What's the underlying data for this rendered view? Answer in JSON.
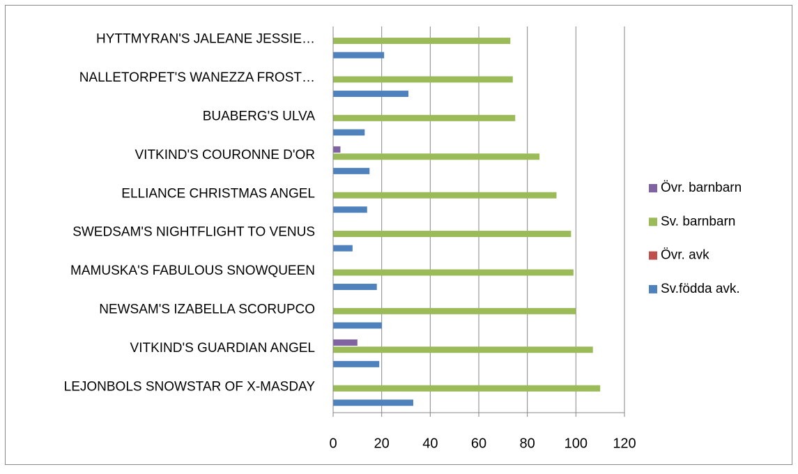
{
  "chart_data": {
    "type": "bar",
    "orientation": "horizontal",
    "categories": [
      "LEJONBOLS SNOWSTAR OF X-MASDAY",
      "VITKIND'S GUARDIAN ANGEL",
      "NEWSAM'S IZABELLA SCORUPCO",
      "MAMUSKA'S FABULOUS SNOWQUEEN",
      "SWEDSAM'S NIGHTFLIGHT TO VENUS",
      "ELLIANCE CHRISTMAS ANGEL",
      "VITKIND'S COURONNE D'OR",
      "BUABERG'S ULVA",
      "NALLETORPET'S WANEZZA FROST…",
      "HYTTMYRAN'S JALEANE JESSIE…"
    ],
    "series": [
      {
        "name": "Sv.födda avk.",
        "color": "#4f81bd",
        "values": [
          33,
          19,
          20,
          18,
          8,
          14,
          15,
          13,
          31,
          21
        ]
      },
      {
        "name": "Övr. avk",
        "color": "#c0504d",
        "values": [
          0,
          0,
          0,
          0,
          0,
          0,
          0,
          0,
          0,
          0
        ]
      },
      {
        "name": "Sv. barnbarn",
        "color": "#9bbb59",
        "values": [
          110,
          107,
          100,
          99,
          98,
          92,
          85,
          75,
          74,
          73
        ]
      },
      {
        "name": "Övr. barnbarn",
        "color": "#8064a2",
        "values": [
          0,
          10,
          0,
          0,
          0,
          0,
          3,
          0,
          0,
          0
        ]
      }
    ],
    "xlim": [
      0,
      120
    ],
    "xticks": [
      0,
      20,
      40,
      60,
      80,
      100,
      120
    ],
    "grid": true,
    "legend": "right"
  }
}
